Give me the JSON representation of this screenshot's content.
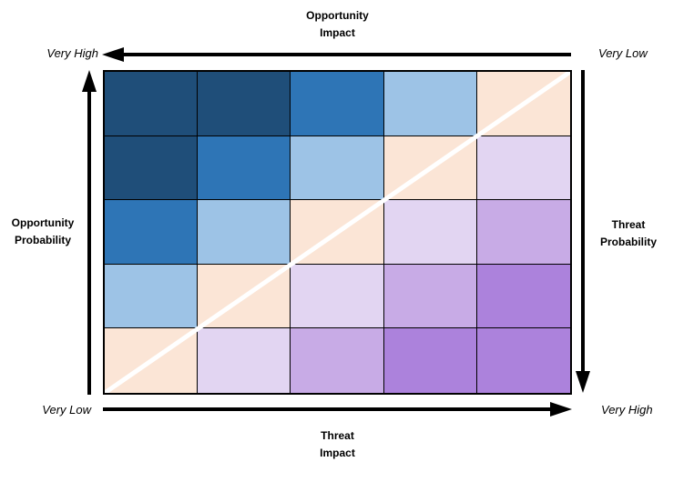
{
  "titles": {
    "top_line1": "Opportunity",
    "top_line2": "Impact",
    "bottom_line1": "Threat",
    "bottom_line2": "Impact",
    "left_line1": "Opportunity",
    "left_line2": "Probability",
    "right_line1": "Threat",
    "right_line2": "Probability"
  },
  "axis_labels": {
    "top_left": "Very High",
    "top_right": "Very Low",
    "bottom_left": "Very Low",
    "bottom_right": "Very High"
  },
  "matrix": {
    "rows": 5,
    "cols": 5,
    "palette": [
      {
        "name": "opportunity-very-high",
        "hex": "#1F4E79"
      },
      {
        "name": "opportunity-high",
        "hex": "#2E75B6"
      },
      {
        "name": "opportunity-medium",
        "hex": "#9DC3E6"
      },
      {
        "name": "neutral-diagonal-band",
        "hex": "#FBE5D6"
      },
      {
        "name": "threat-medium",
        "hex": "#E2D5F2"
      },
      {
        "name": "threat-high",
        "hex": "#C8ABE6"
      },
      {
        "name": "threat-very-high",
        "hex": "#AC82DC"
      }
    ],
    "cell_levels": [
      [
        0,
        0,
        1,
        2,
        3
      ],
      [
        0,
        1,
        2,
        3,
        4
      ],
      [
        1,
        2,
        3,
        4,
        5
      ],
      [
        2,
        3,
        4,
        5,
        6
      ],
      [
        3,
        4,
        5,
        6,
        6
      ]
    ]
  },
  "colors": {
    "arrow": "#000000",
    "diagonal_line": "#FFFFFF",
    "grid_border": "#000000",
    "background": "#FFFFFF"
  }
}
